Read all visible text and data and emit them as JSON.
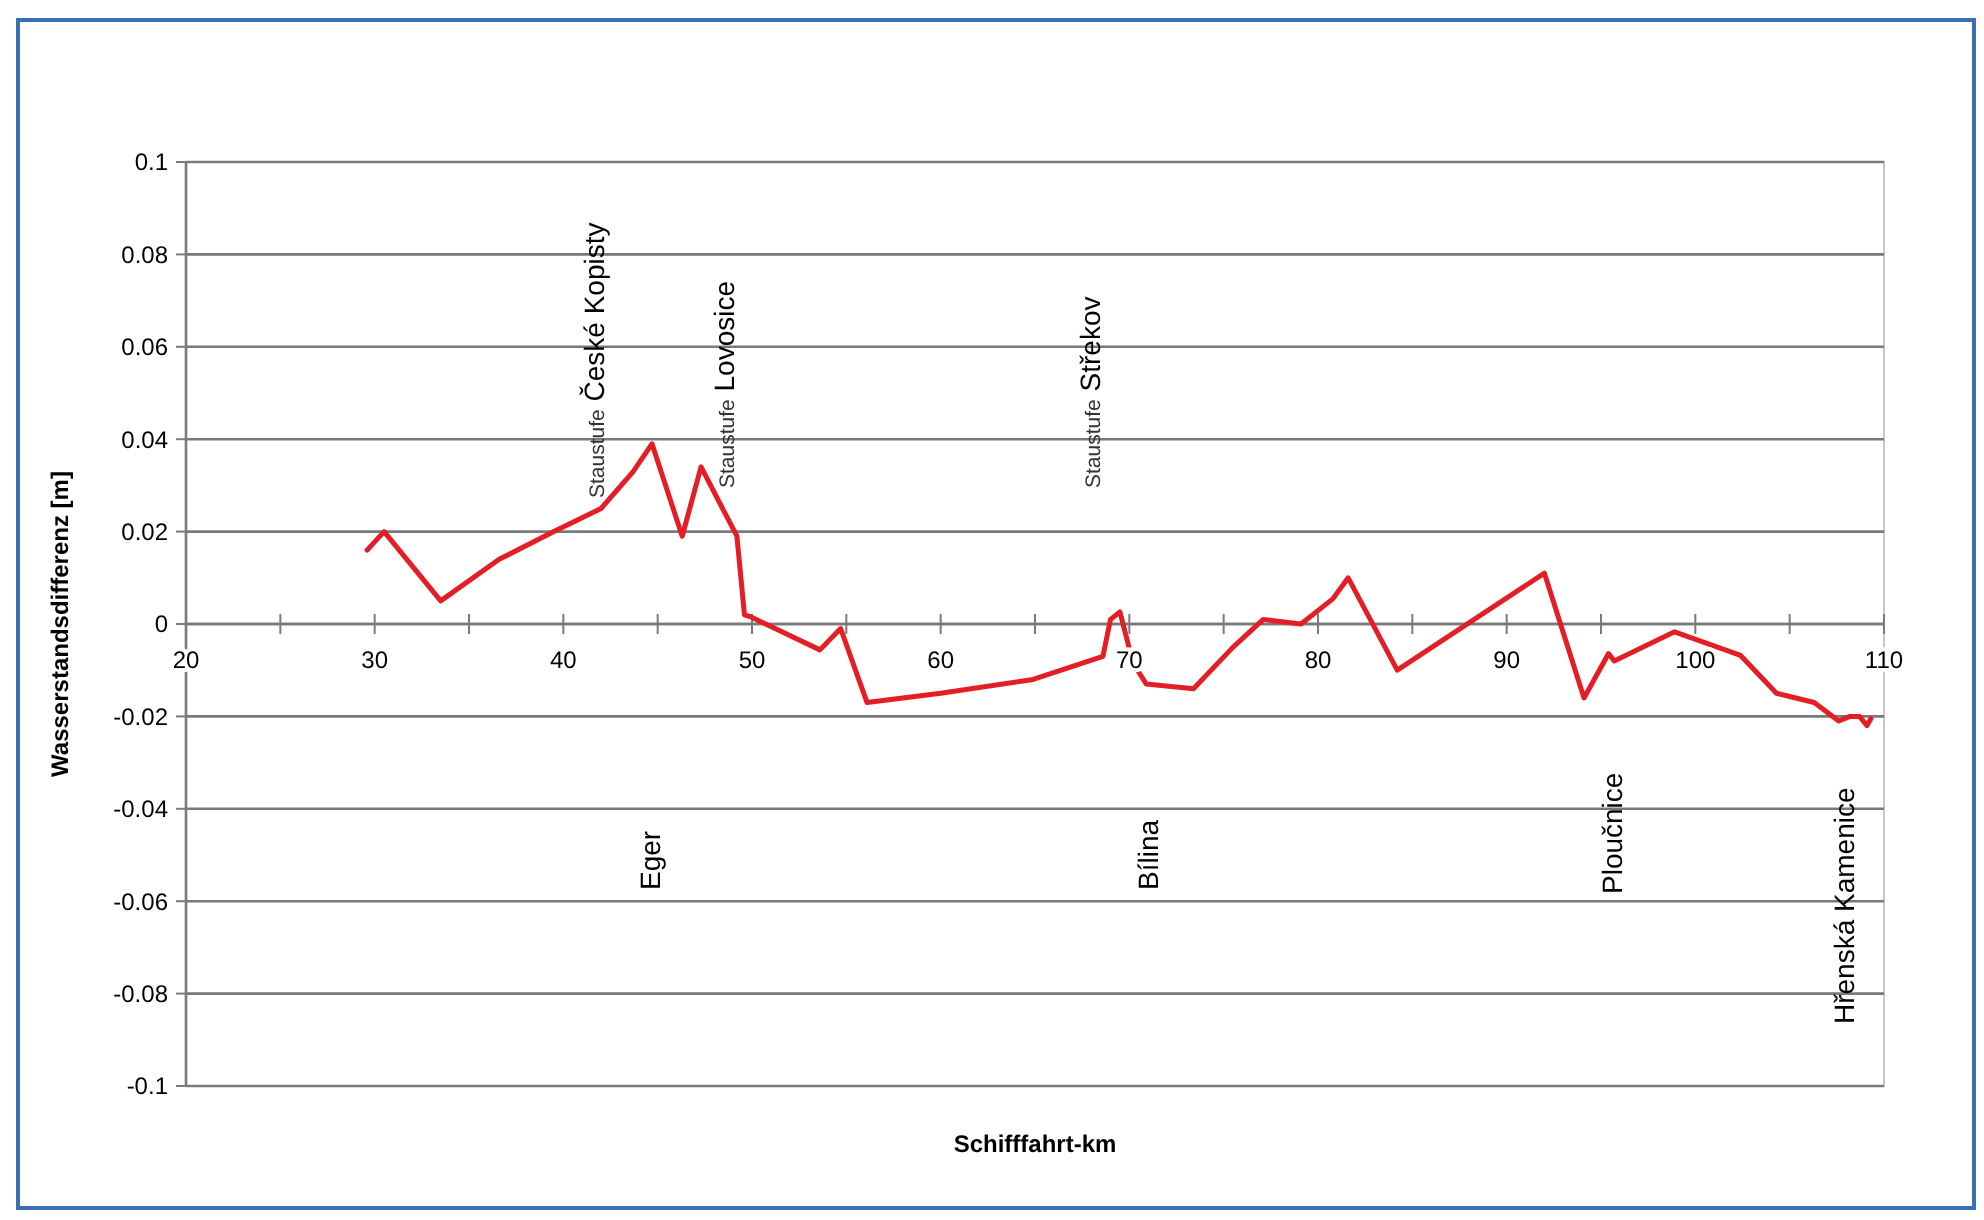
{
  "chart_data": {
    "type": "line",
    "xlabel": "Schifffahrt-km",
    "ylabel": "Wasserstandsdifferenz [m]",
    "xlim": [
      20,
      110
    ],
    "ylim": [
      -0.1,
      0.1
    ],
    "xticks": [
      20,
      {
        "value": 25,
        "label": null
      },
      30,
      {
        "value": 35,
        "label": null
      },
      40,
      {
        "value": 45,
        "label": null
      },
      50,
      {
        "value": 55,
        "label": null
      },
      60,
      {
        "value": 65,
        "label": null
      },
      70,
      {
        "value": 75,
        "label": null
      },
      80,
      {
        "value": 85,
        "label": null
      },
      90,
      {
        "value": 95,
        "label": null
      },
      100,
      {
        "value": 105,
        "label": null
      },
      110
    ],
    "yticks": [
      -0.1,
      -0.08,
      -0.06,
      -0.04,
      -0.02,
      0,
      0.02,
      0.04,
      0.06,
      0.08,
      0.1
    ],
    "grid": "y",
    "line_style": "solid",
    "series": [
      {
        "color": "#e31e24",
        "x": [
          29.6,
          30.5,
          33.5,
          36.6,
          39.5,
          42,
          43.7,
          44.7,
          46.3,
          47.3,
          49.2,
          49.6,
          49.9,
          53.6,
          54.7,
          56.1,
          60,
          64.9,
          68.6,
          69,
          69.5,
          70.2,
          70.9,
          73.4,
          75.5,
          77.1,
          79.1,
          80.8,
          81.6,
          84.2,
          92,
          94.1,
          95.4,
          95.7,
          98.9,
          102.4,
          104.3,
          106.3,
          107.6,
          108.2,
          108.7,
          109.1,
          109.3
        ],
        "values": [
          0.016,
          0.02,
          0.005,
          0.014,
          0.02,
          0.025,
          0.033,
          0.039,
          0.019,
          0.034,
          0.019,
          0.002,
          0.0016,
          -0.0056,
          -0.001,
          -0.017,
          -0.015,
          -0.012,
          -0.007,
          0.001,
          0.0026,
          -0.0085,
          -0.013,
          -0.014,
          -0.005,
          0.001,
          0,
          0.0055,
          0.01,
          -0.01,
          0.011,
          -0.016,
          -0.0064,
          -0.008,
          -0.0017,
          -0.0068,
          -0.015,
          -0.017,
          -0.021,
          -0.02,
          -0.02,
          -0.022,
          -0.0205
        ]
      }
    ],
    "annotations": [
      "Staustufe České Kopisty",
      "Staustufe Lovosice",
      "Staustufe Střekov",
      "Eger",
      "Bílina",
      "Ploučnice",
      "Hřenská Kamenice"
    ]
  }
}
